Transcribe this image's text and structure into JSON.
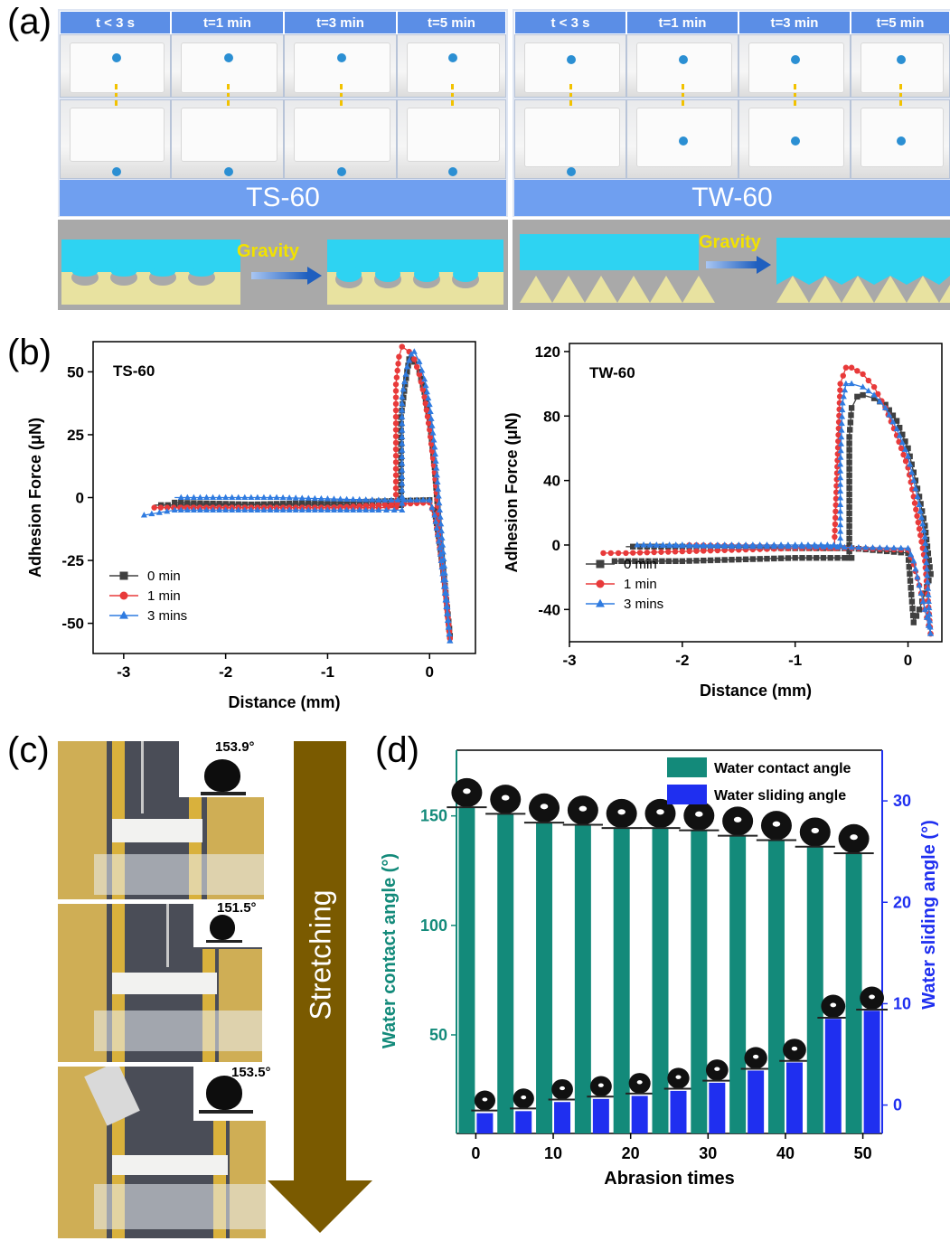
{
  "panels": {
    "a": "(a)",
    "b": "(b)",
    "c": "(c)",
    "d": "(d)"
  },
  "panel_a": {
    "left": {
      "headers": [
        "t < 3 s",
        "t=1 min",
        "t=3 min",
        "t=5 min"
      ],
      "label": "TS-60",
      "schematic_label": "Gravity"
    },
    "right": {
      "headers": [
        "t < 3 s",
        "t=1 min",
        "t=3 min",
        "t=5 min"
      ],
      "label": "TW-60",
      "schematic_label": "Gravity"
    },
    "colors": {
      "header": "#5b8ee6",
      "bar": "#6f9ff0",
      "water": "#2ed3f2",
      "substrate": "#e8e2a0",
      "drop": "#2b8fd3",
      "arrow": "#f2c200"
    }
  },
  "chart_data": [
    {
      "type": "line",
      "id": "b-left",
      "title": "TS-60",
      "xlabel": "Distance (mm)",
      "ylabel": "Adhesion Force (μN)",
      "xlim": [
        -3.3,
        0.45
      ],
      "ylim": [
        -62,
        62
      ],
      "xticks": [
        -3,
        -2,
        -1,
        0
      ],
      "yticks": [
        -50,
        -25,
        0,
        25,
        50
      ],
      "legend_position": "bottom-left",
      "series": [
        {
          "name": "0 min",
          "color": "#404040",
          "marker": "square",
          "x": [
            -2.5,
            -2.0,
            -1.5,
            -1.0,
            -0.5,
            -0.28,
            -0.28,
            -0.24,
            -0.2,
            -0.15,
            -0.1,
            -0.05,
            0.0,
            0.05,
            0.1,
            0.15,
            0.2,
            0.2,
            0.15,
            0.1,
            0.05,
            0.0,
            -0.5,
            -1.0,
            -1.5,
            -2.0,
            -2.5,
            -2.7
          ],
          "y": [
            -2,
            -2.5,
            -3,
            -3,
            -3,
            -3,
            32,
            45,
            55,
            54,
            50,
            42,
            30,
            12,
            -15,
            -35,
            -55,
            -55,
            -35,
            -18,
            -5,
            -1,
            -1.5,
            -2,
            -2.5,
            -3,
            -3,
            -3
          ]
        },
        {
          "name": "1 min",
          "color": "#e83a3a",
          "marker": "circle",
          "x": [
            -2.7,
            -2.0,
            -1.5,
            -1.0,
            -0.5,
            -0.33,
            -0.33,
            -0.3,
            -0.27,
            -0.2,
            -0.15,
            -0.1,
            -0.05,
            0.0,
            0.05,
            0.1,
            0.15,
            0.2,
            0.2,
            0.15,
            0.1,
            0.05,
            0.0,
            -0.5,
            -1.0,
            -1.5,
            -2.0,
            -2.5
          ],
          "y": [
            -4,
            -4,
            -4,
            -4,
            -4,
            -4,
            45,
            56,
            60,
            58,
            55,
            49,
            40,
            27,
            10,
            -14,
            -35,
            -56,
            -56,
            -36,
            -20,
            -7,
            -2,
            -3,
            -4,
            -4,
            -4,
            -4
          ]
        },
        {
          "name": "3 mins",
          "color": "#2f7be0",
          "marker": "triangle",
          "x": [
            -2.8,
            -2.5,
            -2.0,
            -1.5,
            -1.0,
            -0.5,
            -0.27,
            -0.27,
            -0.22,
            -0.18,
            -0.15,
            -0.1,
            -0.05,
            0.0,
            0.05,
            0.1,
            0.15,
            0.2,
            0.2,
            0.15,
            0.1,
            0.05,
            0.0,
            -0.5,
            -1.0,
            -1.5,
            -2.0,
            -2.5
          ],
          "y": [
            -7,
            -5,
            -5,
            -5,
            -5,
            -5,
            -5,
            40,
            52,
            57,
            58,
            54,
            47,
            37,
            20,
            -5,
            -30,
            -57,
            -57,
            -38,
            -20,
            -7,
            -1,
            -1,
            -0.5,
            0,
            0,
            0
          ]
        }
      ]
    },
    {
      "type": "line",
      "id": "b-right",
      "title": "TW-60",
      "xlabel": "Distance (mm)",
      "ylabel": "Adhesion Force (μN)",
      "xlim": [
        -3.0,
        0.3
      ],
      "ylim": [
        -60,
        125
      ],
      "xticks": [
        -3,
        -2,
        -1,
        0
      ],
      "yticks": [
        -40,
        0,
        40,
        80,
        120
      ],
      "legend_position": "bottom-left",
      "series": [
        {
          "name": "0 min",
          "color": "#404040",
          "marker": "square",
          "x": [
            -2.6,
            -2.0,
            -1.5,
            -1.0,
            -0.5,
            -0.52,
            -0.52,
            -0.5,
            -0.45,
            -0.4,
            -0.3,
            -0.2,
            -0.1,
            0.0,
            0.05,
            0.1,
            0.15,
            0.2,
            0.2,
            0.15,
            0.1,
            0.05,
            0.0,
            -0.5,
            -1.0,
            -1.5,
            -2.0,
            -2.5
          ],
          "y": [
            -10,
            -10,
            -9,
            -8,
            -8,
            -8,
            67,
            85,
            92,
            93,
            91,
            87,
            77,
            60,
            45,
            30,
            12,
            -18,
            -18,
            -30,
            -40,
            -48,
            -5,
            -2,
            -2,
            -1.5,
            -1,
            -1
          ]
        },
        {
          "name": "1 min",
          "color": "#e83a3a",
          "marker": "circle",
          "x": [
            -2.7,
            -2.5,
            -2.0,
            -1.5,
            -1.0,
            -0.65,
            -0.65,
            -0.6,
            -0.55,
            -0.5,
            -0.4,
            -0.3,
            -0.2,
            -0.1,
            0.0,
            0.05,
            0.1,
            0.15,
            0.2,
            0.2,
            0.15,
            0.1,
            0.05,
            0.0,
            -0.5,
            -1.0,
            -1.5,
            -2.0
          ],
          "y": [
            -5,
            -5,
            -4,
            -3,
            -2,
            -2,
            5,
            100,
            110,
            110,
            106,
            98,
            85,
            68,
            48,
            30,
            10,
            -10,
            -55,
            -55,
            -40,
            -25,
            -12,
            -3,
            -2,
            -1,
            -0.5,
            0
          ]
        },
        {
          "name": "3 mins",
          "color": "#2f7be0",
          "marker": "triangle",
          "x": [
            -2.4,
            -2.0,
            -1.5,
            -1.0,
            -0.6,
            -0.6,
            -0.58,
            -0.55,
            -0.5,
            -0.4,
            -0.3,
            -0.2,
            -0.1,
            0.0,
            0.05,
            0.1,
            0.15,
            0.2,
            0.2,
            0.15,
            0.1,
            0.05,
            0.0,
            -0.5,
            -1.0,
            -1.5,
            -2.0,
            -2.4
          ],
          "y": [
            0,
            0,
            0,
            0,
            0,
            50,
            88,
            100,
            100,
            98,
            93,
            85,
            72,
            55,
            40,
            25,
            5,
            -55,
            -55,
            -40,
            -25,
            -10,
            -2,
            -1.5,
            -1,
            -1,
            -0.5,
            0
          ]
        }
      ]
    },
    {
      "type": "bar",
      "id": "d",
      "xlabel": "Abrasion times",
      "ylabel_left": "Water contact angle (°)",
      "ylabel_right": "Water sliding angle (°)",
      "xlim": [
        -2.5,
        52.5
      ],
      "ylim_left": [
        5,
        180
      ],
      "ylim_right": [
        -2.8,
        35
      ],
      "xticks": [
        0,
        10,
        20,
        30,
        40,
        50
      ],
      "yticks_left": [
        50,
        100,
        150
      ],
      "yticks_right": [
        0,
        10,
        20,
        30
      ],
      "legend_position": "top-right",
      "x": [
        0,
        5,
        10,
        15,
        20,
        25,
        30,
        35,
        40,
        45,
        50
      ],
      "series": [
        {
          "name": "Water  contact angle",
          "color": "#138a7a",
          "axis": "left",
          "values": [
            154,
            151,
            147,
            146,
            144.5,
            144.5,
            143.5,
            141,
            139,
            136,
            133
          ]
        },
        {
          "name": "Water sliding angle",
          "color": "#1f2ff0",
          "axis": "right",
          "values": [
            -0.8,
            -0.6,
            0.3,
            0.6,
            0.9,
            1.4,
            2.2,
            3.4,
            4.2,
            8.5,
            9.3
          ]
        }
      ]
    }
  ],
  "panel_c": {
    "angles": [
      "153.9°",
      "151.5°",
      "153.5°"
    ],
    "arrow_label": "Stretching",
    "arrow_color": "#7a5a00"
  }
}
